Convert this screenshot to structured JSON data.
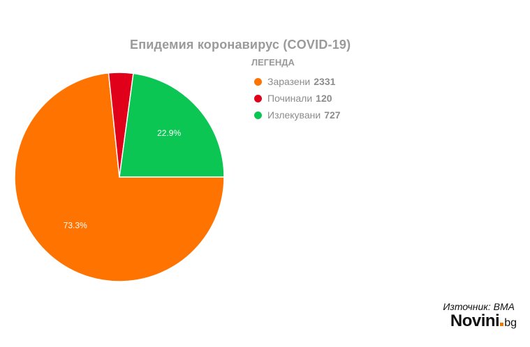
{
  "chart_data": {
    "type": "pie",
    "title": "Епидемия коронавирус (COVID-19)",
    "legend_title": "ЛЕГЕНДА",
    "legend_position": "right",
    "slices": [
      {
        "label": "Заразени",
        "value": 2331,
        "color": "#ff7300",
        "percent_label": "73.3%"
      },
      {
        "label": "Починали",
        "value": 120,
        "color": "#e0001a",
        "percent_label": ""
      },
      {
        "label": "Излекувани",
        "value": 727,
        "color": "#0bc653",
        "percent_label": "22.9%"
      }
    ]
  },
  "footer": {
    "source": "Източник: ВМА",
    "logo_main": "Novini",
    "logo_tld": "bg",
    "logo_accent_color": "#f27a00"
  }
}
